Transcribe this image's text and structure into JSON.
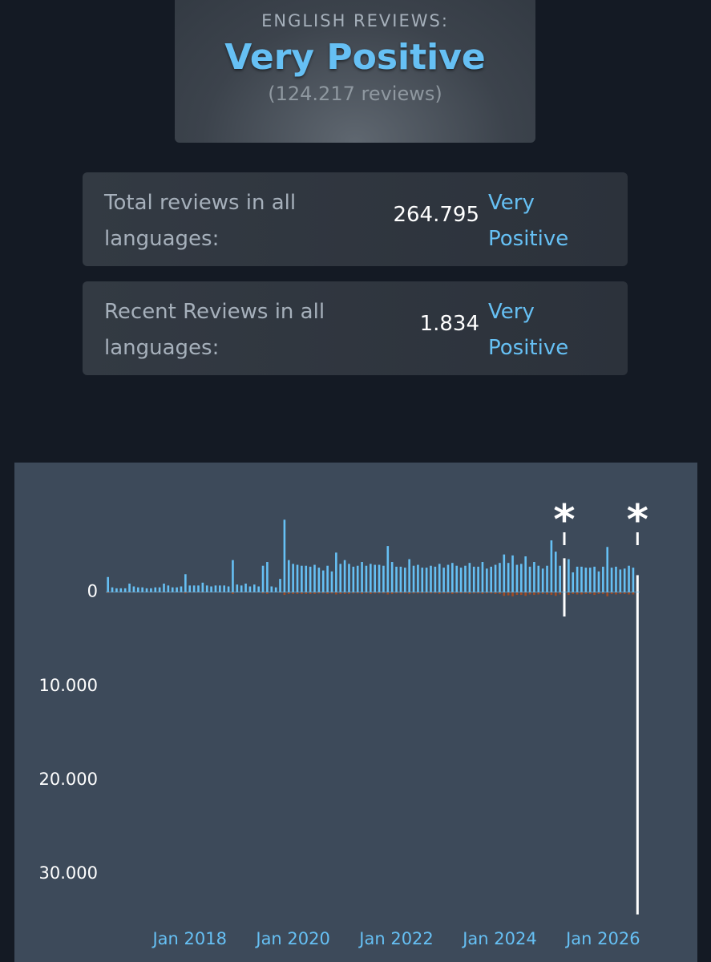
{
  "header": {
    "label": "ENGLISH REVIEWS:",
    "rating": "Very Positive",
    "count": "(124.217 reviews)"
  },
  "summaries": [
    {
      "label": "Total reviews in all languages:",
      "count": "264.795",
      "rating": "Very Positive"
    },
    {
      "label": "Recent Reviews in all languages:",
      "count": "1.834",
      "rating": "Very Positive"
    }
  ],
  "chart_data": {
    "type": "bar",
    "categories": [
      "2016-06",
      "2016-07",
      "2016-08",
      "2016-09",
      "2016-10",
      "2016-11",
      "2016-12",
      "2017-01",
      "2017-02",
      "2017-03",
      "2017-04",
      "2017-05",
      "2017-06",
      "2017-07",
      "2017-08",
      "2017-09",
      "2017-10",
      "2017-11",
      "2017-12",
      "2018-01",
      "2018-02",
      "2018-03",
      "2018-04",
      "2018-05",
      "2018-06",
      "2018-07",
      "2018-08",
      "2018-09",
      "2018-10",
      "2018-11",
      "2018-12",
      "2019-01",
      "2019-02",
      "2019-03",
      "2019-04",
      "2019-05",
      "2019-06",
      "2019-07",
      "2019-08",
      "2019-09",
      "2019-10",
      "2019-11",
      "2019-12",
      "2020-01",
      "2020-02",
      "2020-03",
      "2020-04",
      "2020-05",
      "2020-06",
      "2020-07",
      "2020-08",
      "2020-09",
      "2020-10",
      "2020-11",
      "2020-12",
      "2021-01",
      "2021-02",
      "2021-03",
      "2021-04",
      "2021-05",
      "2021-06",
      "2021-07",
      "2021-08",
      "2021-09",
      "2021-10",
      "2021-11",
      "2021-12",
      "2022-01",
      "2022-02",
      "2022-03",
      "2022-04",
      "2022-05",
      "2022-06",
      "2022-07",
      "2022-08",
      "2022-09",
      "2022-10",
      "2022-11",
      "2022-12",
      "2023-01",
      "2023-02",
      "2023-03",
      "2023-04",
      "2023-05",
      "2023-06",
      "2023-07",
      "2023-08",
      "2023-09",
      "2023-10",
      "2023-11",
      "2023-12",
      "2024-01",
      "2024-02",
      "2024-03",
      "2024-04",
      "2024-05",
      "2024-06",
      "2024-07",
      "2024-08",
      "2024-09",
      "2024-10",
      "2024-11",
      "2024-12",
      "2025-01",
      "2025-02",
      "2025-03",
      "2025-04",
      "2025-05",
      "2025-06",
      "2025-07",
      "2025-08",
      "2025-09",
      "2025-10",
      "2025-11",
      "2025-12",
      "2026-01",
      "2026-02",
      "2026-03",
      "2026-04",
      "2026-05",
      "2026-06",
      "2026-07",
      "2026-08",
      "2026-09"
    ],
    "series": [
      {
        "color": "#66c0f4",
        "values": [
          1600,
          500,
          400,
          400,
          400,
          900,
          600,
          500,
          500,
          400,
          400,
          500,
          500,
          900,
          700,
          500,
          500,
          600,
          1900,
          700,
          700,
          700,
          1000,
          700,
          600,
          700,
          700,
          700,
          600,
          3400,
          800,
          700,
          900,
          600,
          800,
          600,
          2800,
          3200,
          600,
          500,
          1400,
          7700,
          3400,
          3000,
          2900,
          2800,
          2800,
          2700,
          2900,
          2600,
          2300,
          2800,
          2200,
          4200,
          3000,
          3400,
          3000,
          2700,
          2800,
          3200,
          2800,
          3000,
          2900,
          2900,
          2800,
          4900,
          3200,
          2700,
          2700,
          2600,
          3500,
          2800,
          2900,
          2600,
          2600,
          2800,
          2700,
          3000,
          2600,
          2900,
          3100,
          2800,
          2600,
          2800,
          3100,
          2700,
          2700,
          3200,
          2500,
          2700,
          2900,
          3100,
          4000,
          3100,
          3900,
          2900,
          3000,
          3800,
          2700,
          3200,
          2800,
          2500,
          2800,
          5500,
          4300,
          2800,
          3600,
          3500,
          2100,
          2700,
          2700,
          2600,
          2600,
          2700,
          2200,
          2700,
          4800,
          2600,
          2700,
          2400,
          2500,
          2800,
          2600,
          1800
        ]
      },
      {
        "color": "#a34c25",
        "values": [
          -100,
          -50,
          -50,
          -50,
          -50,
          -80,
          -60,
          -50,
          -50,
          -50,
          -50,
          -50,
          -50,
          -80,
          -60,
          -50,
          -50,
          -60,
          -150,
          -60,
          -60,
          -60,
          -80,
          -60,
          -50,
          -60,
          -60,
          -60,
          -50,
          -200,
          -60,
          -60,
          -80,
          -50,
          -60,
          -50,
          -150,
          -200,
          -50,
          -50,
          -100,
          -300,
          -200,
          -200,
          -200,
          -200,
          -200,
          -200,
          -200,
          -150,
          -150,
          -200,
          -150,
          -250,
          -200,
          -200,
          -200,
          -150,
          -150,
          -200,
          -150,
          -200,
          -150,
          -150,
          -150,
          -250,
          -200,
          -150,
          -150,
          -150,
          -200,
          -150,
          -150,
          -150,
          -150,
          -150,
          -150,
          -200,
          -150,
          -150,
          -200,
          -150,
          -150,
          -150,
          -200,
          -150,
          -150,
          -200,
          -150,
          -150,
          -200,
          -200,
          -400,
          -350,
          -450,
          -300,
          -300,
          -400,
          -250,
          -300,
          -250,
          -200,
          -250,
          -300,
          -400,
          -250,
          -2600,
          -300,
          -200,
          -250,
          -250,
          -200,
          -200,
          -300,
          -200,
          -200,
          -450,
          -200,
          -250,
          -200,
          -200,
          -250,
          -250,
          -34300
        ]
      }
    ],
    "annotations": [
      {
        "x": "2025-04",
        "text": "*",
        "color": "#ffffff"
      },
      {
        "x": "2026-09",
        "text": "*",
        "color": "#ffffff"
      }
    ],
    "ylim": [
      -34500,
      12500
    ],
    "yticks": [
      0,
      {
        "value": -10000,
        "label": "10.000"
      },
      {
        "value": -20000,
        "label": "20.000"
      },
      {
        "value": -30000,
        "label": "30.000"
      }
    ],
    "xticks": [
      {
        "value": "2018-01",
        "label": "Jan 2018"
      },
      {
        "value": "2020-01",
        "label": "Jan 2020"
      },
      {
        "value": "2022-01",
        "label": "Jan 2022"
      },
      {
        "value": "2024-01",
        "label": "Jan 2024"
      },
      {
        "value": "2026-01",
        "label": "Jan 2026"
      }
    ]
  }
}
